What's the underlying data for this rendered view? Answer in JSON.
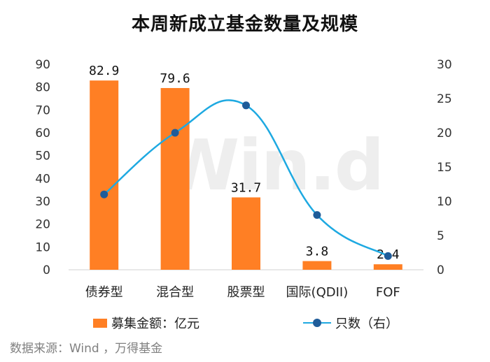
{
  "title": "本周新成立基金数量及规模",
  "source": "数据来源：Wind ，万得基金",
  "watermark": "Win.d",
  "legend": {
    "bar_label": "募集金额：亿元",
    "line_label": "只数（右）"
  },
  "colors": {
    "bar": "#FF7F24",
    "line": "#1EA9E1",
    "dot": "#1F5C99"
  },
  "chart_data": {
    "type": "bar",
    "categories": [
      "债券型",
      "混合型",
      "股票型",
      "国际(QDII)",
      "FOF"
    ],
    "series": [
      {
        "name": "募集金额：亿元",
        "type": "bar",
        "axis": "left",
        "values": [
          82.9,
          79.6,
          31.7,
          3.8,
          2.4
        ],
        "data_labels": [
          "82.9",
          "79.6",
          "31.7",
          "3.8",
          "2.4"
        ]
      },
      {
        "name": "只数（右）",
        "type": "line",
        "axis": "right",
        "values": [
          11,
          20,
          24,
          8,
          2
        ]
      }
    ],
    "y_left": {
      "min": 0,
      "max": 90,
      "ticks": [
        0,
        10,
        20,
        30,
        40,
        50,
        60,
        70,
        80,
        90
      ]
    },
    "y_right": {
      "min": 0,
      "max": 30,
      "ticks": [
        0,
        5,
        10,
        15,
        20,
        25,
        30
      ]
    },
    "legend_position": "bottom",
    "grid": false
  }
}
